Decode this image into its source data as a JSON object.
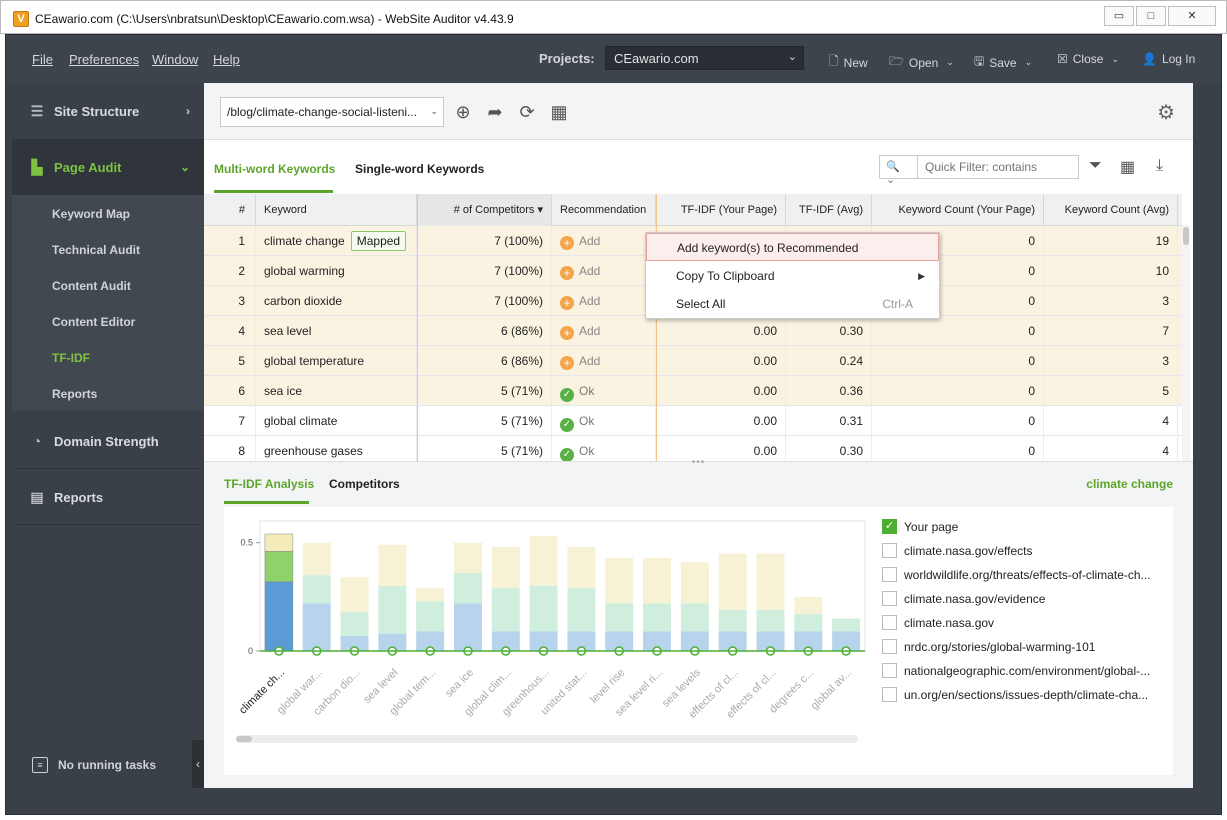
{
  "window": {
    "title": "CEawario.com (C:\\Users\\nbratsun\\Desktop\\CEawario.com.wsa) - WebSite Auditor v4.43.9",
    "app_icon": "V",
    "buttons": [
      "▭",
      "□",
      "✕"
    ]
  },
  "menubar": {
    "menus": [
      "File",
      "Preferences",
      "Window",
      "Help"
    ],
    "projects_label": "Projects:",
    "project_selected": "CEawario.com",
    "actions": [
      {
        "label": "New",
        "icon": "new-document-icon"
      },
      {
        "label": "Open",
        "icon": "folder-icon"
      },
      {
        "label": "Save",
        "icon": "floppy-disk-icon"
      },
      {
        "label": "Close",
        "icon": "close-box-icon"
      },
      {
        "label": "Log In",
        "icon": "user-icon"
      }
    ]
  },
  "sidebar": {
    "sections": [
      {
        "label": "Site Structure",
        "icon": "site-structure-icon"
      },
      {
        "label": "Page Audit",
        "icon": "page-audit-icon",
        "active": true
      },
      {
        "label": "Domain Strength",
        "icon": "gauge-icon"
      },
      {
        "label": "Reports",
        "icon": "reports-icon"
      }
    ],
    "page_audit_items": [
      "Keyword Map",
      "Technical Audit",
      "Content Audit",
      "Content Editor",
      "TF-IDF",
      "Reports"
    ],
    "active_item": "TF-IDF",
    "status": "No running tasks"
  },
  "toolbar": {
    "url": "/blog/climate-change-social-listeni...",
    "icons": [
      "add-circle-icon",
      "share-arrow-icon",
      "refresh-icon",
      "schedule-calendar-icon"
    ],
    "settings_icon": "gear-icon"
  },
  "tabs": [
    "Multi-word Keywords",
    "Single-word Keywords"
  ],
  "active_tab": "Multi-word Keywords",
  "quick_filter": {
    "placeholder": "Quick Filter: contains"
  },
  "table": {
    "columns": [
      "#",
      "Keyword",
      "# of Competitors ▾",
      "Recommendation",
      "TF-IDF (Your Page)",
      "TF-IDF (Avg)",
      "Keyword Count (Your Page)",
      "Keyword Count (Avg)"
    ],
    "rows": [
      {
        "n": "1",
        "keyword": "climate change",
        "badge": "Mapped",
        "competitors": "7 (100%)",
        "rec": "Add",
        "tfidf_page": "",
        "tfidf_avg": "",
        "count_page": "0",
        "count_avg": "19"
      },
      {
        "n": "2",
        "keyword": "global warming",
        "badge": "",
        "competitors": "7 (100%)",
        "rec": "Add",
        "tfidf_page": "",
        "tfidf_avg": "",
        "count_page": "0",
        "count_avg": "10"
      },
      {
        "n": "3",
        "keyword": "carbon dioxide",
        "badge": "",
        "competitors": "7 (100%)",
        "rec": "Add",
        "tfidf_page": "",
        "tfidf_avg": "",
        "count_page": "0",
        "count_avg": "3"
      },
      {
        "n": "4",
        "keyword": "sea level",
        "badge": "",
        "competitors": "6 (86%)",
        "rec": "Add",
        "tfidf_page": "0.00",
        "tfidf_avg": "0.30",
        "count_page": "0",
        "count_avg": "7"
      },
      {
        "n": "5",
        "keyword": "global temperature",
        "badge": "",
        "competitors": "6 (86%)",
        "rec": "Add",
        "tfidf_page": "0.00",
        "tfidf_avg": "0.24",
        "count_page": "0",
        "count_avg": "3"
      },
      {
        "n": "6",
        "keyword": "sea ice",
        "badge": "",
        "competitors": "5 (71%)",
        "rec": "Ok",
        "tfidf_page": "0.00",
        "tfidf_avg": "0.36",
        "count_page": "0",
        "count_avg": "5"
      },
      {
        "n": "7",
        "keyword": "global climate",
        "badge": "",
        "competitors": "5 (71%)",
        "rec": "Ok",
        "tfidf_page": "0.00",
        "tfidf_avg": "0.31",
        "count_page": "0",
        "count_avg": "4"
      },
      {
        "n": "8",
        "keyword": "greenhouse gases",
        "badge": "",
        "competitors": "5 (71%)",
        "rec": "Ok",
        "tfidf_page": "0.00",
        "tfidf_avg": "0.30",
        "count_page": "0",
        "count_avg": "4"
      }
    ]
  },
  "context_menu": {
    "items": [
      {
        "label": "Add keyword(s) to Recommended",
        "shortcut": "",
        "submenu": false
      },
      {
        "label": "Copy To Clipboard",
        "shortcut": "",
        "submenu": true
      },
      {
        "label": "Select All",
        "shortcut": "Ctrl-A",
        "submenu": false
      }
    ]
  },
  "bottom": {
    "tabs": [
      "TF-IDF Analysis",
      "Competitors"
    ],
    "active_tab": "TF-IDF Analysis",
    "selected_keyword": "climate change"
  },
  "legend": [
    {
      "label": "Your page",
      "checked": true
    },
    {
      "label": "climate.nasa.gov/effects",
      "checked": false
    },
    {
      "label": "worldwildlife.org/threats/effects-of-climate-ch...",
      "checked": false
    },
    {
      "label": "climate.nasa.gov/evidence",
      "checked": false
    },
    {
      "label": "climate.nasa.gov",
      "checked": false
    },
    {
      "label": "nrdc.org/stories/global-warming-101",
      "checked": false
    },
    {
      "label": "nationalgeographic.com/environment/global-...",
      "checked": false
    },
    {
      "label": "un.org/en/sections/issues-depth/climate-cha...",
      "checked": false
    }
  ],
  "chart_data": {
    "type": "bar",
    "stacked": true,
    "yticks": [
      "0.5",
      "0"
    ],
    "ylim": [
      0,
      0.6
    ],
    "categories": [
      "climate ch...",
      "global war...",
      "carbon dio...",
      "sea level",
      "global tem...",
      "sea ice",
      "global clim...",
      "greenhous...",
      "united stat...",
      "level rise",
      "sea level ri...",
      "sea levels",
      "effects of cl...",
      "effects of cl...",
      "degrees c...",
      "global av..."
    ],
    "segments": [
      {
        "name": "blue",
        "color_highlight": "#5b9bd5",
        "color": "#b8d4ec",
        "values": [
          0.32,
          0.22,
          0.07,
          0.08,
          0.09,
          0.22,
          0.09,
          0.09,
          0.09,
          0.09,
          0.09,
          0.09,
          0.09,
          0.09,
          0.09,
          0.09
        ]
      },
      {
        "name": "green",
        "color_highlight": "#8fd16a",
        "color": "#cfeedd",
        "values": [
          0.14,
          0.13,
          0.11,
          0.22,
          0.14,
          0.14,
          0.2,
          0.21,
          0.2,
          0.13,
          0.13,
          0.13,
          0.1,
          0.1,
          0.08,
          0.06
        ]
      },
      {
        "name": "yellow",
        "color_highlight": "#f5eaba",
        "color": "#f7f2d6",
        "values": [
          0.08,
          0.15,
          0.16,
          0.19,
          0.06,
          0.14,
          0.19,
          0.23,
          0.19,
          0.21,
          0.21,
          0.19,
          0.26,
          0.26,
          0.08,
          0.0
        ]
      }
    ]
  }
}
